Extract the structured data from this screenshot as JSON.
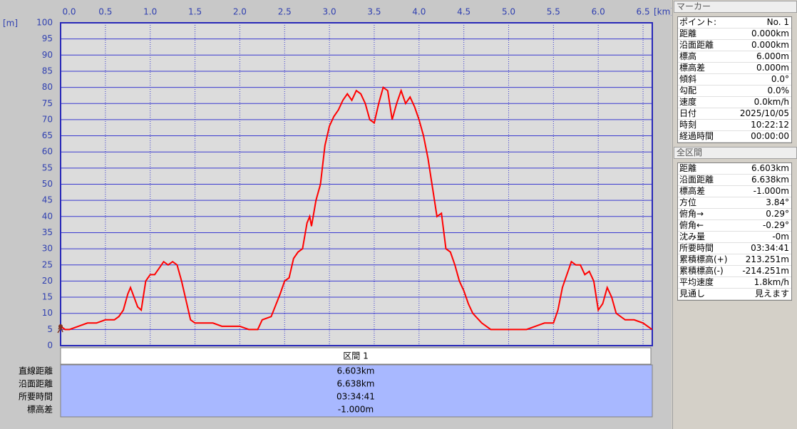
{
  "chart_data": {
    "type": "line",
    "y_label": "[m]",
    "x_label": "[km]",
    "x": [
      0,
      0.05,
      0.1,
      0.2,
      0.3,
      0.4,
      0.5,
      0.6,
      0.65,
      0.7,
      0.75,
      0.78,
      0.82,
      0.86,
      0.9,
      0.95,
      1.0,
      1.05,
      1.1,
      1.15,
      1.2,
      1.25,
      1.3,
      1.35,
      1.4,
      1.45,
      1.5,
      1.6,
      1.7,
      1.8,
      1.9,
      2.0,
      2.1,
      2.2,
      2.25,
      2.35,
      2.45,
      2.5,
      2.55,
      2.6,
      2.65,
      2.7,
      2.75,
      2.78,
      2.8,
      2.85,
      2.9,
      2.95,
      3.0,
      3.05,
      3.1,
      3.15,
      3.2,
      3.25,
      3.3,
      3.35,
      3.4,
      3.45,
      3.5,
      3.55,
      3.6,
      3.65,
      3.7,
      3.75,
      3.8,
      3.85,
      3.9,
      3.95,
      4.0,
      4.05,
      4.1,
      4.15,
      4.2,
      4.25,
      4.3,
      4.35,
      4.4,
      4.45,
      4.5,
      4.55,
      4.6,
      4.7,
      4.8,
      4.9,
      5.0,
      5.1,
      5.2,
      5.3,
      5.4,
      5.5,
      5.55,
      5.6,
      5.65,
      5.7,
      5.75,
      5.8,
      5.85,
      5.9,
      5.95,
      6.0,
      6.05,
      6.1,
      6.15,
      6.2,
      6.3,
      6.4,
      6.5,
      6.6
    ],
    "series": [
      {
        "color": "#ff0000",
        "values": [
          6,
          5,
          5,
          6,
          7,
          7,
          8,
          8,
          9,
          11,
          16,
          18,
          15,
          12,
          11,
          20,
          22,
          22,
          24,
          26,
          25,
          26,
          25,
          20,
          14,
          8,
          7,
          7,
          7,
          6,
          6,
          6,
          5,
          5,
          8,
          9,
          16,
          20,
          21,
          27,
          29,
          30,
          38,
          40,
          37,
          45,
          50,
          62,
          68,
          71,
          73,
          76,
          78,
          76,
          79,
          78,
          75,
          70,
          69,
          75,
          80,
          79,
          70,
          75,
          79,
          75,
          77,
          74,
          70,
          65,
          58,
          49,
          40,
          41,
          30,
          29,
          25,
          20,
          17,
          13,
          10,
          7,
          5,
          5,
          5,
          5,
          5,
          6,
          7,
          7,
          11,
          18,
          22,
          26,
          25,
          25,
          22,
          23,
          20,
          11,
          13,
          18,
          15,
          10,
          8,
          8,
          7,
          5
        ]
      }
    ],
    "xlim": [
      0,
      6.603
    ],
    "xticks": [
      {
        "value": 0,
        "label": "0.0"
      },
      0.5,
      {
        "value": 1,
        "label": "1.0"
      },
      1.5,
      {
        "value": 2,
        "label": "2.0"
      },
      2.5,
      {
        "value": 3,
        "label": "3.0"
      },
      3.5,
      {
        "value": 4,
        "label": "4.0"
      },
      4.5,
      {
        "value": 5,
        "label": "5.0"
      },
      5.5,
      {
        "value": 6,
        "label": "6.0"
      },
      6.5
    ],
    "ylim": [
      0,
      100
    ],
    "yticks": [
      0,
      5,
      10,
      15,
      20,
      25,
      30,
      35,
      40,
      45,
      50,
      55,
      60,
      65,
      70,
      75,
      80,
      85,
      90,
      95,
      100
    ],
    "grid": true
  },
  "section_table": {
    "header": "区間 1",
    "rows": [
      [
        "直線距離",
        "6.603km"
      ],
      [
        "沿面距離",
        "6.638km"
      ],
      [
        "所要時間",
        "03:34:41"
      ],
      [
        "標高差",
        "-1.000m"
      ]
    ]
  },
  "marker_panel": {
    "title": "マーカー",
    "rows": [
      [
        "ポイント:",
        "No. 1"
      ],
      [
        "距離",
        "0.000km"
      ],
      [
        "沿面距離",
        "0.000km"
      ],
      [
        "標高",
        "6.000m"
      ],
      [
        "標高差",
        "0.000m"
      ],
      [
        "傾斜",
        "0.0°"
      ],
      [
        "勾配",
        "0.0%"
      ],
      [
        "速度",
        "0.0km/h"
      ],
      [
        "日付",
        "2025/10/05"
      ],
      [
        "時刻",
        "10:22:12"
      ],
      [
        "経過時間",
        "00:00:00"
      ]
    ]
  },
  "total_panel": {
    "title": "全区間",
    "rows": [
      [
        "距離",
        "6.603km"
      ],
      [
        "沿面距離",
        "6.638km"
      ],
      [
        "標高差",
        "-1.000m"
      ],
      [
        "方位",
        "3.84°"
      ],
      [
        "俯角→",
        "0.29°"
      ],
      [
        "俯角←",
        "-0.29°"
      ],
      [
        "沈み量",
        "-0m"
      ],
      [
        "所要時間",
        "03:34:41"
      ],
      [
        "累積標高(+)",
        "213.251m"
      ],
      [
        "累積標高(-)",
        "-214.251m"
      ],
      [
        "平均速度",
        "1.8km/h"
      ],
      [
        "見通し",
        "見えます"
      ]
    ]
  }
}
